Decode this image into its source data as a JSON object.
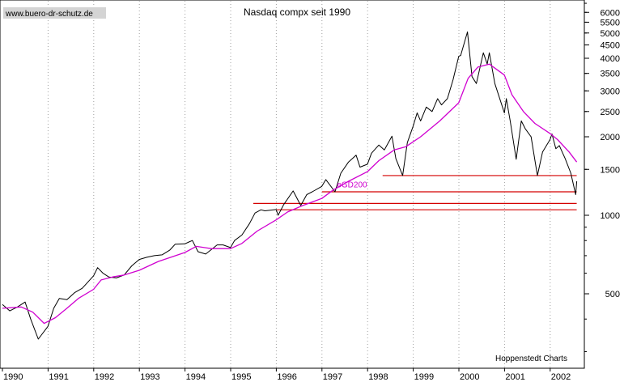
{
  "source_label": "www.buero-dr-schutz.de",
  "credit": "Hoppenstedt Charts",
  "chart_data": {
    "type": "line",
    "title": "Nasdaq compx seit 1990",
    "xlabel": "",
    "ylabel": "",
    "y_scale": "log",
    "ylim": [
      200,
      7000
    ],
    "xlim": [
      "1990-01-01",
      "2002-08-01"
    ],
    "grid": {
      "vertical": true,
      "horizontal": false,
      "style": "dotted"
    },
    "x_tick_labels": [
      "1990",
      "1991",
      "1992",
      "1993",
      "1994",
      "1995",
      "1996",
      "1997",
      "1998",
      "1999",
      "2000",
      "2001",
      "2002"
    ],
    "y_tick_labels": [
      {
        "value": 6000,
        "label": "6000"
      },
      {
        "value": 5500,
        "label": "5500"
      },
      {
        "value": 5000,
        "label": "5000"
      },
      {
        "value": 4500,
        "label": "4500"
      },
      {
        "value": 4000,
        "label": "4000"
      },
      {
        "value": 3500,
        "label": "3500"
      },
      {
        "value": 3000,
        "label": "3000"
      },
      {
        "value": 2500,
        "label": "2500"
      },
      {
        "value": 2000,
        "label": "2000"
      },
      {
        "value": 1500,
        "label": "1500"
      },
      {
        "value": 1000,
        "label": "1000"
      },
      {
        "value": 500,
        "label": "500"
      }
    ],
    "series": [
      {
        "name": "",
        "color": "#000000",
        "points": [
          [
            "1990-01-01",
            455
          ],
          [
            "1990-03-01",
            430
          ],
          [
            "1990-05-01",
            445
          ],
          [
            "1990-07-01",
            465
          ],
          [
            "1990-08-15",
            400
          ],
          [
            "1990-10-15",
            335
          ],
          [
            "1990-12-31",
            375
          ],
          [
            "1991-02-15",
            440
          ],
          [
            "1991-04-01",
            480
          ],
          [
            "1991-06-01",
            475
          ],
          [
            "1991-08-01",
            505
          ],
          [
            "1991-10-01",
            525
          ],
          [
            "1991-12-31",
            586
          ],
          [
            "1992-02-01",
            630
          ],
          [
            "1992-03-15",
            600
          ],
          [
            "1992-05-01",
            580
          ],
          [
            "1992-07-01",
            575
          ],
          [
            "1992-09-01",
            590
          ],
          [
            "1992-11-01",
            640
          ],
          [
            "1992-12-31",
            677
          ],
          [
            "1993-03-01",
            690
          ],
          [
            "1993-05-01",
            700
          ],
          [
            "1993-07-01",
            705
          ],
          [
            "1993-09-01",
            735
          ],
          [
            "1993-10-15",
            775
          ],
          [
            "1993-12-31",
            777
          ],
          [
            "1994-02-01",
            790
          ],
          [
            "1994-03-01",
            800
          ],
          [
            "1994-04-15",
            725
          ],
          [
            "1994-06-15",
            710
          ],
          [
            "1994-08-01",
            740
          ],
          [
            "1994-09-15",
            770
          ],
          [
            "1994-11-01",
            770
          ],
          [
            "1994-12-31",
            752
          ],
          [
            "1995-02-01",
            800
          ],
          [
            "1995-04-01",
            840
          ],
          [
            "1995-06-01",
            930
          ],
          [
            "1995-07-15",
            1020
          ],
          [
            "1995-09-01",
            1050
          ],
          [
            "1995-10-01",
            1040
          ],
          [
            "1995-12-31",
            1052
          ],
          [
            "1996-01-15",
            1000
          ],
          [
            "1996-03-01",
            1100
          ],
          [
            "1996-05-15",
            1240
          ],
          [
            "1996-07-15",
            1090
          ],
          [
            "1996-09-01",
            1200
          ],
          [
            "1996-10-15",
            1230
          ],
          [
            "1996-12-31",
            1291
          ],
          [
            "1997-02-01",
            1370
          ],
          [
            "1997-04-15",
            1230
          ],
          [
            "1997-06-01",
            1450
          ],
          [
            "1997-08-01",
            1600
          ],
          [
            "1997-10-01",
            1700
          ],
          [
            "1997-11-01",
            1530
          ],
          [
            "1997-12-31",
            1570
          ],
          [
            "1998-02-01",
            1730
          ],
          [
            "1998-04-01",
            1860
          ],
          [
            "1998-05-15",
            1780
          ],
          [
            "1998-07-15",
            2010
          ],
          [
            "1998-08-15",
            1650
          ],
          [
            "1998-10-08",
            1420
          ],
          [
            "1998-11-15",
            1900
          ],
          [
            "1998-12-31",
            2193
          ],
          [
            "1999-02-01",
            2470
          ],
          [
            "1999-03-01",
            2300
          ],
          [
            "1999-04-15",
            2600
          ],
          [
            "1999-06-01",
            2500
          ],
          [
            "1999-07-15",
            2800
          ],
          [
            "1999-08-15",
            2650
          ],
          [
            "1999-10-01",
            2800
          ],
          [
            "1999-11-15",
            3300
          ],
          [
            "1999-12-31",
            4069
          ],
          [
            "2000-01-15",
            4100
          ],
          [
            "2000-03-10",
            5050
          ],
          [
            "2000-04-15",
            3400
          ],
          [
            "2000-05-20",
            3200
          ],
          [
            "2000-07-15",
            4200
          ],
          [
            "2000-08-15",
            3800
          ],
          [
            "2000-09-01",
            4200
          ],
          [
            "2000-10-15",
            3200
          ],
          [
            "2000-12-31",
            2470
          ],
          [
            "2001-01-15",
            2800
          ],
          [
            "2001-02-15",
            2300
          ],
          [
            "2001-04-04",
            1640
          ],
          [
            "2001-05-15",
            2300
          ],
          [
            "2001-06-15",
            2150
          ],
          [
            "2001-08-01",
            2000
          ],
          [
            "2001-09-21",
            1420
          ],
          [
            "2001-11-01",
            1750
          ],
          [
            "2001-12-31",
            1950
          ],
          [
            "2002-01-15",
            2050
          ],
          [
            "2002-02-15",
            1800
          ],
          [
            "2002-03-15",
            1850
          ],
          [
            "2002-05-01",
            1650
          ],
          [
            "2002-06-15",
            1450
          ],
          [
            "2002-07-24",
            1200
          ],
          [
            "2002-08-01",
            1350
          ]
        ]
      },
      {
        "name": "eGD200",
        "color": "#d000d0",
        "points": [
          [
            "1990-01-01",
            440
          ],
          [
            "1990-06-01",
            445
          ],
          [
            "1990-09-01",
            425
          ],
          [
            "1990-12-01",
            385
          ],
          [
            "1991-03-01",
            405
          ],
          [
            "1991-06-01",
            440
          ],
          [
            "1991-09-01",
            480
          ],
          [
            "1991-12-31",
            520
          ],
          [
            "1992-03-01",
            565
          ],
          [
            "1992-06-01",
            580
          ],
          [
            "1992-09-01",
            590
          ],
          [
            "1992-12-31",
            615
          ],
          [
            "1993-06-01",
            665
          ],
          [
            "1993-12-31",
            720
          ],
          [
            "1994-04-01",
            760
          ],
          [
            "1994-08-01",
            745
          ],
          [
            "1994-12-31",
            745
          ],
          [
            "1995-04-01",
            780
          ],
          [
            "1995-08-01",
            870
          ],
          [
            "1995-12-31",
            960
          ],
          [
            "1996-04-01",
            1030
          ],
          [
            "1996-08-01",
            1090
          ],
          [
            "1996-12-31",
            1160
          ],
          [
            "1997-04-01",
            1250
          ],
          [
            "1997-08-01",
            1350
          ],
          [
            "1997-12-31",
            1470
          ],
          [
            "1998-04-01",
            1620
          ],
          [
            "1998-08-01",
            1780
          ],
          [
            "1998-11-01",
            1830
          ],
          [
            "1999-03-01",
            2000
          ],
          [
            "1999-08-01",
            2300
          ],
          [
            "1999-12-31",
            2700
          ],
          [
            "2000-03-15",
            3350
          ],
          [
            "2000-06-01",
            3700
          ],
          [
            "2000-09-01",
            3800
          ],
          [
            "2000-12-31",
            3450
          ],
          [
            "2001-03-01",
            2900
          ],
          [
            "2001-06-01",
            2500
          ],
          [
            "2001-09-01",
            2250
          ],
          [
            "2001-12-31",
            2060
          ],
          [
            "2002-03-01",
            1950
          ],
          [
            "2002-06-01",
            1750
          ],
          [
            "2002-08-01",
            1600
          ]
        ]
      }
    ],
    "support_lines": [
      {
        "value": 1420,
        "from": "1998-05-01",
        "to": "2002-08-01",
        "color": "#d40000"
      },
      {
        "value": 1230,
        "from": "1997-01-01",
        "to": "2002-08-01",
        "color": "#d40000"
      },
      {
        "value": 1110,
        "from": "1995-07-01",
        "to": "2002-08-01",
        "color": "#d40000"
      },
      {
        "value": 1050,
        "from": "1996-01-01",
        "to": "2002-08-01",
        "color": "#d40000"
      }
    ],
    "annotations": [
      {
        "text": "eGD200",
        "date": "1997-05-01",
        "value": 1280
      }
    ]
  }
}
